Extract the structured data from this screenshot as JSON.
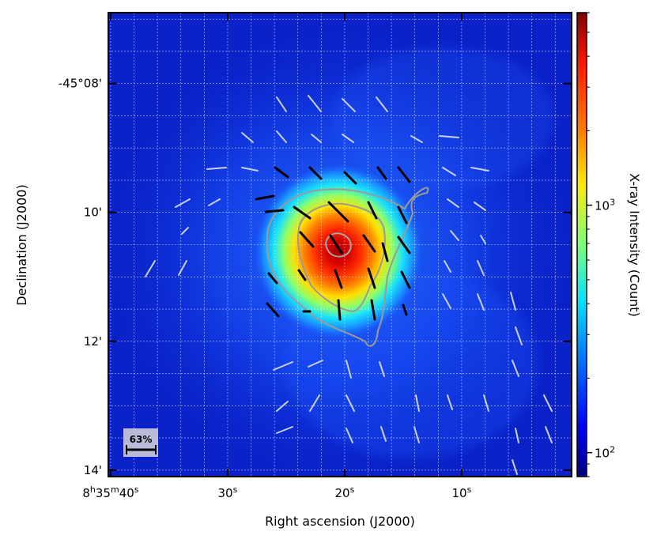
{
  "chart_data": {
    "type": "heatmap",
    "title": "",
    "xlabel": "Right ascension (J2000)",
    "ylabel": "Declination (J2000)",
    "x_ticks": [
      {
        "ra_sec": 40,
        "label_pre": "8",
        "sup_h": "h",
        "label_mid": "35",
        "sup_m": "m",
        "label_post": "40",
        "sup_s": "s"
      },
      {
        "ra_sec": 30,
        "label_pre": "",
        "sup_h": "",
        "label_mid": "",
        "sup_m": "",
        "label_post": "30",
        "sup_s": "s"
      },
      {
        "ra_sec": 20,
        "label_pre": "",
        "sup_h": "",
        "label_mid": "",
        "sup_m": "",
        "label_post": "20",
        "sup_s": "s"
      },
      {
        "ra_sec": 10,
        "label_pre": "",
        "sup_h": "",
        "label_mid": "",
        "sup_m": "",
        "label_post": "10",
        "sup_s": "s"
      }
    ],
    "y_ticks": [
      {
        "dec_arcmin": 8,
        "label": "-45°08'"
      },
      {
        "dec_arcmin": 10,
        "label": "10'"
      },
      {
        "dec_arcmin": 12,
        "label": "12'"
      },
      {
        "dec_arcmin": 14,
        "label": "14'"
      }
    ],
    "x_range_ra_sec": [
      40.2,
      0.6
    ],
    "y_range_dec_arcmin": [
      6.9,
      14.1
    ],
    "colorbar": {
      "label": "X-ray Intensity (Count)",
      "scale": "log",
      "range": [
        80,
        6000
      ],
      "major_ticks": [
        {
          "value": 100,
          "label": "10",
          "exp": "2"
        },
        {
          "value": 1000,
          "label": "10",
          "exp": "3"
        }
      ],
      "colormap": "jet"
    },
    "grid": true,
    "scale_bar": {
      "label": "63%"
    },
    "peak": {
      "ra_sec": 20.8,
      "dec_arcmin": 10.6
    },
    "colors": {
      "grid": "#ffffff",
      "contour": "#9a9a9a",
      "vector_bright": "#000000",
      "vector_faint": "#c8d0e6"
    }
  }
}
